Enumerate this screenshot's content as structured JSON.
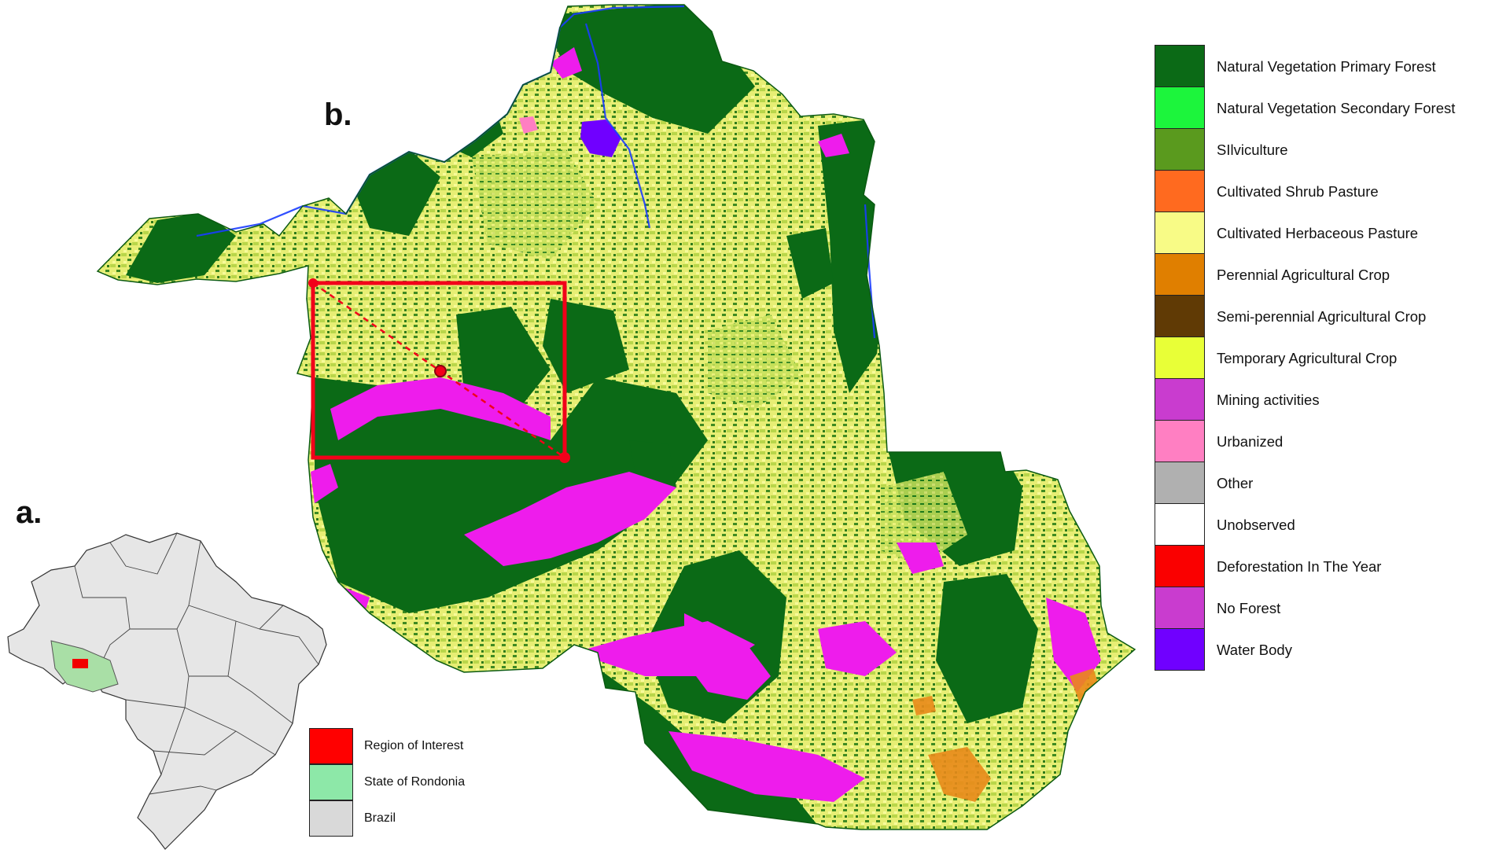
{
  "panels": {
    "a": "a.",
    "b": "b."
  },
  "landcover_legend": [
    {
      "label": "Natural Vegetation Primary Forest",
      "color": "#0b6a16"
    },
    {
      "label": "Natural Vegetation Secondary Forest",
      "color": "#1cf53c"
    },
    {
      "label": "SIlviculture",
      "color": "#5a9a1e"
    },
    {
      "label": "Cultivated Shrub Pasture",
      "color": "#ff6a1f"
    },
    {
      "label": "Cultivated Herbaceous Pasture",
      "color": "#f8fb86"
    },
    {
      "label": "Perennial Agricultural Crop",
      "color": "#e07f00"
    },
    {
      "label": "Semi-perennial Agricultural Crop",
      "color": "#603a05"
    },
    {
      "label": "Temporary Agricultural Crop",
      "color": "#e8ff37"
    },
    {
      "label": "Mining activities",
      "color": "#c93ccf"
    },
    {
      "label": "Urbanized",
      "color": "#ff7fc2"
    },
    {
      "label": "Other",
      "color": "#b0b0b0"
    },
    {
      "label": "Unobserved",
      "color": "#ffffff"
    },
    {
      "label": "Deforestation In The Year",
      "color": "#fa0000"
    },
    {
      "label": "No Forest",
      "color": "#c93ccf"
    },
    {
      "label": "Water Body",
      "color": "#7000ff"
    }
  ],
  "inset_legend": [
    {
      "label": "Region of Interest",
      "color": "#ff0000"
    },
    {
      "label": "State of Rondonia",
      "color": "#8de8a8"
    },
    {
      "label": "Brazil",
      "color": "#d9d9d9"
    }
  ],
  "map_colors": {
    "forest": "#0b6a16",
    "pasture": "#e8f07a",
    "mining": "#ee1cec",
    "river": "#1a3cff",
    "roi_box": "#f2001a",
    "perennial": "#e98a1a"
  }
}
